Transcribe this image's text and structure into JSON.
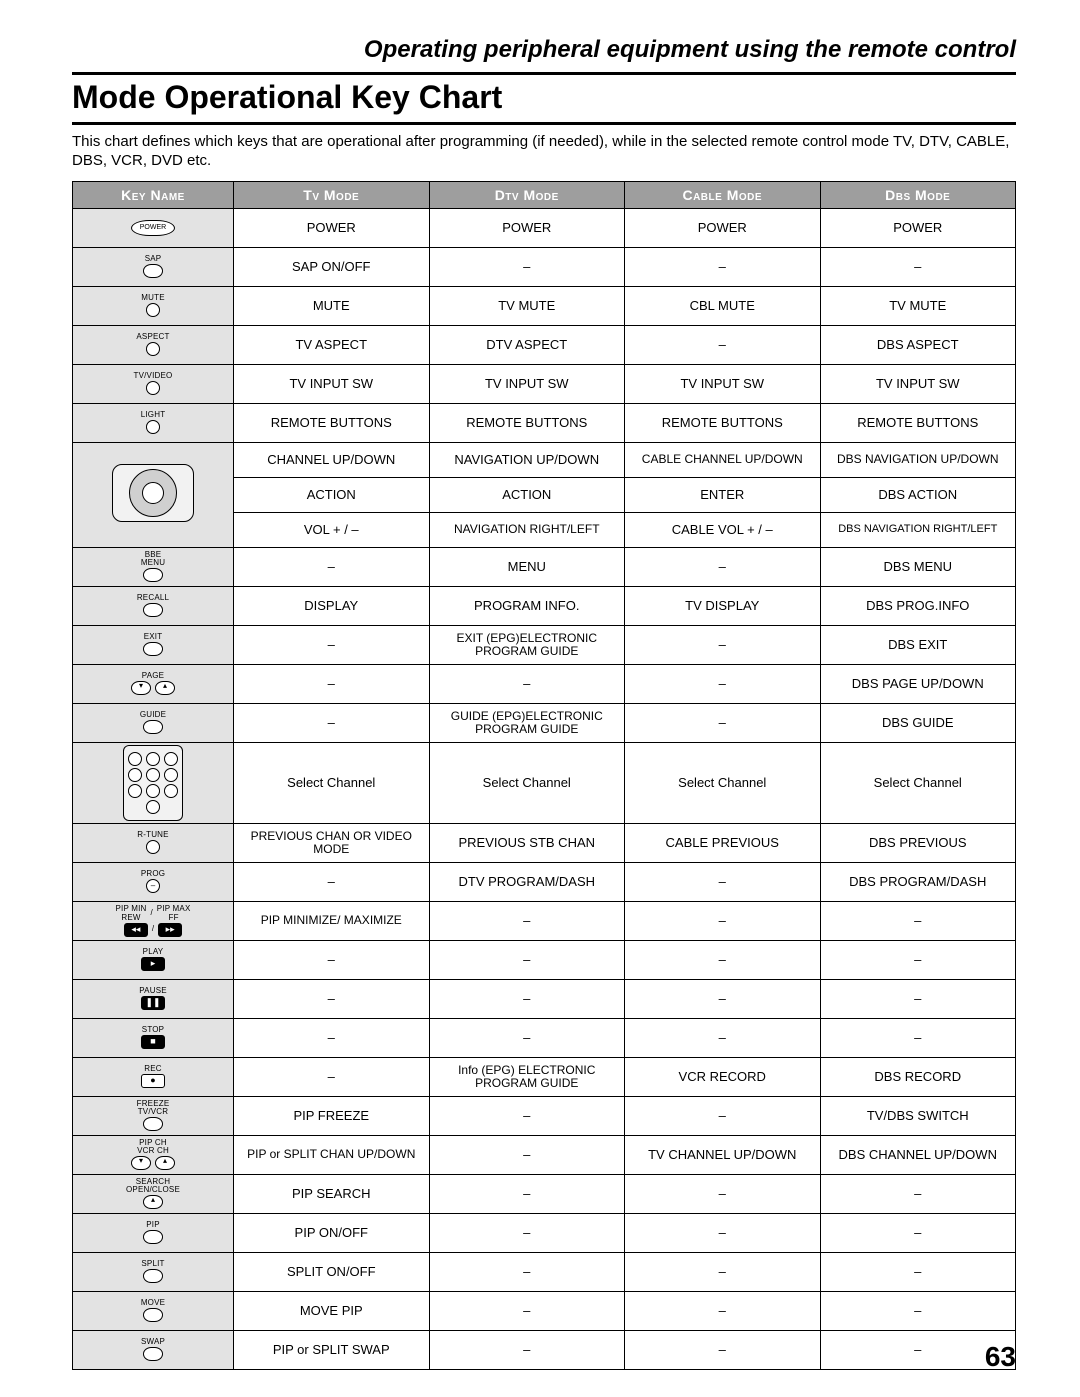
{
  "supertitle": "Operating peripheral equipment using the remote control",
  "title": "Mode Operational Key Chart",
  "intro": "This chart defines which keys that are operational after programming (if needed), while in the selected remote control mode TV, DTV, CABLE, DBS, VCR, DVD etc.",
  "page_number": "63",
  "headers": [
    "Key Name",
    "Tv Mode",
    "Dtv Mode",
    "Cable Mode",
    "Dbs Mode"
  ],
  "rows": [
    {
      "key": "POWER",
      "tv": "POWER",
      "dtv": "POWER",
      "cable": "POWER",
      "dbs": "POWER"
    },
    {
      "key": "SAP",
      "tv": "SAP ON/OFF",
      "dtv": "–",
      "cable": "–",
      "dbs": "–"
    },
    {
      "key": "MUTE",
      "tv": "MUTE",
      "dtv": "TV MUTE",
      "cable": "CBL MUTE",
      "dbs": "TV MUTE"
    },
    {
      "key": "ASPECT",
      "tv": "TV ASPECT",
      "dtv": "DTV ASPECT",
      "cable": "–",
      "dbs": "DBS ASPECT"
    },
    {
      "key": "TV/VIDEO",
      "tv": "TV INPUT SW",
      "dtv": "TV INPUT SW",
      "cable": "TV INPUT SW",
      "dbs": "TV INPUT SW"
    },
    {
      "key": "LIGHT",
      "tv": "REMOTE BUTTONS",
      "dtv": "REMOTE BUTTONS",
      "cable": "REMOTE BUTTONS",
      "dbs": "REMOTE BUTTONS"
    },
    {
      "key": "NAVPAD-UD",
      "tv": "CHANNEL UP/DOWN",
      "dtv": "NAVIGATION UP/DOWN",
      "cable": "CABLE CHANNEL UP/DOWN",
      "dbs": "DBS NAVIGATION UP/DOWN"
    },
    {
      "key": "NAVPAD-OK",
      "tv": "ACTION",
      "dtv": "ACTION",
      "cable": "ENTER",
      "dbs": "DBS ACTION"
    },
    {
      "key": "NAVPAD-LR",
      "tv": "VOL + / –",
      "dtv": "NAVIGATION RIGHT/LEFT",
      "cable": "CABLE VOL + / –",
      "dbs": "DBS NAVIGATION RIGHT/LEFT"
    },
    {
      "key": "BBE MENU",
      "tv": "–",
      "dtv": "MENU",
      "cable": "–",
      "dbs": "DBS MENU"
    },
    {
      "key": "RECALL",
      "tv": "DISPLAY",
      "dtv": "PROGRAM INFO.",
      "cable": "TV DISPLAY",
      "dbs": "DBS PROG.INFO"
    },
    {
      "key": "EXIT",
      "tv": "–",
      "dtv": "EXIT (EPG)ELECTRONIC PROGRAM GUIDE",
      "cable": "–",
      "dbs": "DBS EXIT"
    },
    {
      "key": "PAGE",
      "tv": "–",
      "dtv": "–",
      "cable": "–",
      "dbs": "DBS PAGE UP/DOWN"
    },
    {
      "key": "GUIDE",
      "tv": "–",
      "dtv": "GUIDE (EPG)ELECTRONIC PROGRAM GUIDE",
      "cable": "–",
      "dbs": "DBS GUIDE"
    },
    {
      "key": "NUMPAD",
      "tv": "Select Channel",
      "dtv": "Select Channel",
      "cable": "Select Channel",
      "dbs": "Select Channel"
    },
    {
      "key": "R-TUNE",
      "tv": "PREVIOUS CHAN OR VIDEO MODE",
      "dtv": "PREVIOUS STB CHAN",
      "cable": "CABLE PREVIOUS",
      "dbs": "DBS PREVIOUS"
    },
    {
      "key": "PROG",
      "tv": "–",
      "dtv": "DTV PROGRAM/DASH",
      "cable": "–",
      "dbs": "DBS PROGRAM/DASH"
    },
    {
      "key": "PIP MIN REW / PIP MAX FF",
      "tv": "PIP MINIMIZE/ MAXIMIZE",
      "dtv": "–",
      "cable": "–",
      "dbs": "–"
    },
    {
      "key": "PLAY",
      "tv": "–",
      "dtv": "–",
      "cable": "–",
      "dbs": "–"
    },
    {
      "key": "PAUSE",
      "tv": "–",
      "dtv": "–",
      "cable": "–",
      "dbs": "–"
    },
    {
      "key": "STOP",
      "tv": "–",
      "dtv": "–",
      "cable": "–",
      "dbs": "–"
    },
    {
      "key": "REC",
      "tv": "–",
      "dtv": "Info (EPG) ELECTRONIC PROGRAM GUIDE",
      "cable": "VCR RECORD",
      "dbs": "DBS RECORD"
    },
    {
      "key": "FREEZE TV/VCR",
      "tv": "PIP FREEZE",
      "dtv": "–",
      "cable": "–",
      "dbs": "TV/DBS SWITCH"
    },
    {
      "key": "PIP CH VCR CH",
      "tv": "PIP or SPLIT CHAN UP/DOWN",
      "dtv": "–",
      "cable": "TV CHANNEL UP/DOWN",
      "dbs": "DBS CHANNEL UP/DOWN"
    },
    {
      "key": "SEARCH OPEN/CLOSE",
      "tv": "PIP SEARCH",
      "dtv": "–",
      "cable": "–",
      "dbs": "–"
    },
    {
      "key": "PIP",
      "tv": "PIP ON/OFF",
      "dtv": "–",
      "cable": "–",
      "dbs": "–"
    },
    {
      "key": "SPLIT",
      "tv": "SPLIT ON/OFF",
      "dtv": "–",
      "cable": "–",
      "dbs": "–"
    },
    {
      "key": "MOVE",
      "tv": "MOVE PIP",
      "dtv": "–",
      "cable": "–",
      "dbs": "–"
    },
    {
      "key": "SWAP",
      "tv": "PIP or SPLIT SWAP",
      "dtv": "–",
      "cable": "–",
      "dbs": "–"
    }
  ],
  "keylabels": {
    "POWER": "POWER",
    "SAP": "SAP",
    "MUTE": "MUTE",
    "ASPECT": "ASPECT",
    "TVVIDEO": "TV/VIDEO",
    "LIGHT": "LIGHT",
    "BBE": "BBE",
    "MENU": "MENU",
    "RECALL": "RECALL",
    "EXIT": "EXIT",
    "PAGE": "PAGE",
    "GUIDE": "GUIDE",
    "RTUNE": "R-TUNE",
    "PROG": "PROG",
    "PIPMIN": "PIP MIN",
    "PIPMAX": "PIP MAX",
    "REW": "REW",
    "FF": "FF",
    "PLAY": "PLAY",
    "PAUSE": "PAUSE",
    "STOP": "STOP",
    "REC": "REC",
    "FREEZE": "FREEZE",
    "TVVCR": "TV/VCR",
    "PIPCH": "PIP CH",
    "VCRCH": "VCR CH",
    "SEARCH": "SEARCH",
    "OPENCLOSE": "OPEN/CLOSE",
    "PIP": "PIP",
    "SPLIT": "SPLIT",
    "MOVE": "MOVE",
    "SWAP": "SWAP"
  }
}
